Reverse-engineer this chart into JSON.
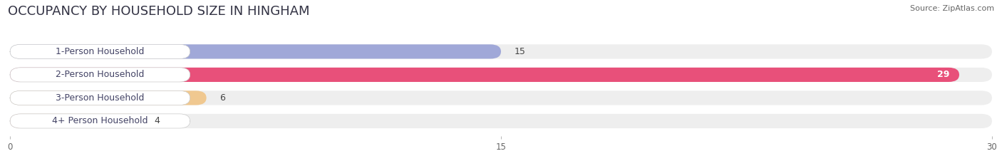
{
  "title": "OCCUPANCY BY HOUSEHOLD SIZE IN HINGHAM",
  "source": "Source: ZipAtlas.com",
  "categories": [
    "1-Person Household",
    "2-Person Household",
    "3-Person Household",
    "4+ Person Household"
  ],
  "values": [
    15,
    29,
    6,
    4
  ],
  "bar_colors": [
    "#a0a8d8",
    "#e8507a",
    "#f0c890",
    "#f0a898"
  ],
  "xlim": [
    0,
    30
  ],
  "xticks": [
    0,
    15,
    30
  ],
  "bg_color": "#ffffff",
  "bar_bg_color": "#eeeeee",
  "title_fontsize": 13,
  "label_fontsize": 9,
  "value_fontsize": 9,
  "bar_height": 0.62,
  "label_box_color": "#ffffff"
}
